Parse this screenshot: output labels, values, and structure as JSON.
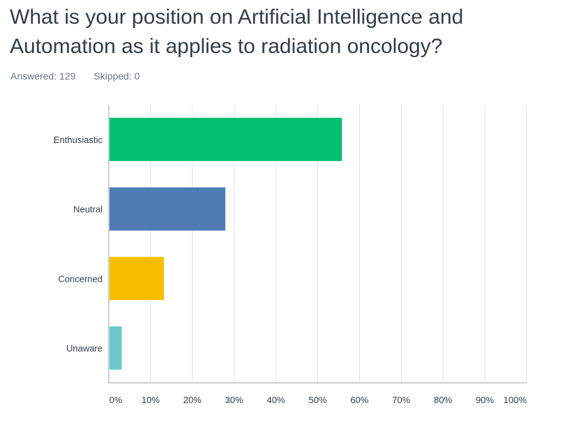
{
  "question": {
    "title": "What is your position on Artificial Intelligence and Automation as it applies to radiation oncology?",
    "answered": "Answered: 129",
    "skipped": "Skipped: 0"
  },
  "colors": {
    "grid": "#e2e5e8",
    "axis": "#9aa3aa"
  },
  "chart_data": {
    "type": "bar",
    "orientation": "horizontal",
    "categories": [
      "Enthusiastic",
      "Neutral",
      "Concerned",
      "Unaware"
    ],
    "values": [
      55.8,
      27.9,
      13.2,
      3.1
    ],
    "colors": [
      "#00bf6f",
      "#507cb6",
      "#f9be00",
      "#6bc8cd"
    ],
    "xlim": [
      0,
      100
    ],
    "x_ticks": [
      "0%",
      "10%",
      "20%",
      "30%",
      "40%",
      "50%",
      "60%",
      "70%",
      "80%",
      "90%",
      "100%"
    ],
    "grid": true
  }
}
